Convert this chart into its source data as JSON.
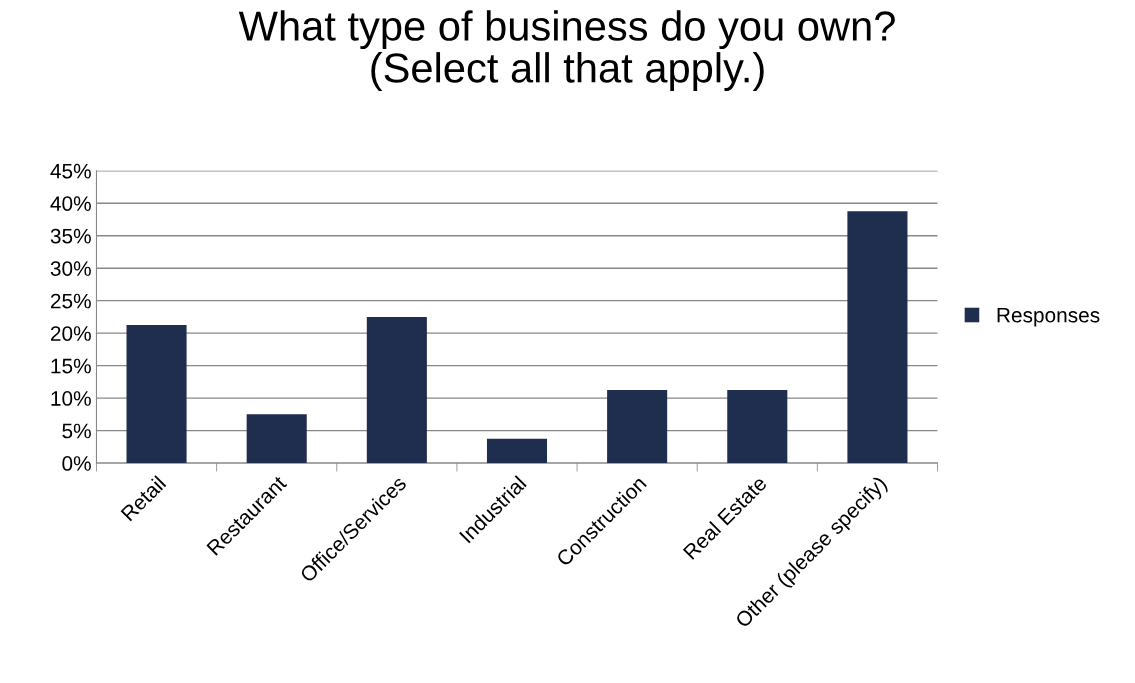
{
  "chart_data": {
    "type": "bar",
    "title": "What type of business do you own?\n(Select all that apply.)",
    "categories": [
      "Retail",
      "Restaurant",
      "Office/Services",
      "Industrial",
      "Construction",
      "Real Estate",
      "Other (please specify)"
    ],
    "series": [
      {
        "name": "Responses",
        "color": "#1f2d4e",
        "values": [
          21.25,
          7.5,
          22.5,
          3.75,
          11.25,
          11.25,
          38.75
        ]
      }
    ],
    "ylim": [
      0,
      45
    ],
    "yticks": [
      {
        "value": 0,
        "label": "0%"
      },
      {
        "value": 5,
        "label": "5%"
      },
      {
        "value": 10,
        "label": "10%"
      },
      {
        "value": 15,
        "label": "15%"
      },
      {
        "value": 20,
        "label": "20%"
      },
      {
        "value": 25,
        "label": "25%"
      },
      {
        "value": 30,
        "label": "30%"
      },
      {
        "value": 35,
        "label": "35%"
      },
      {
        "value": 40,
        "label": "40%"
      },
      {
        "value": 45,
        "label": "45%"
      }
    ],
    "grid": "y",
    "legend": "right"
  }
}
